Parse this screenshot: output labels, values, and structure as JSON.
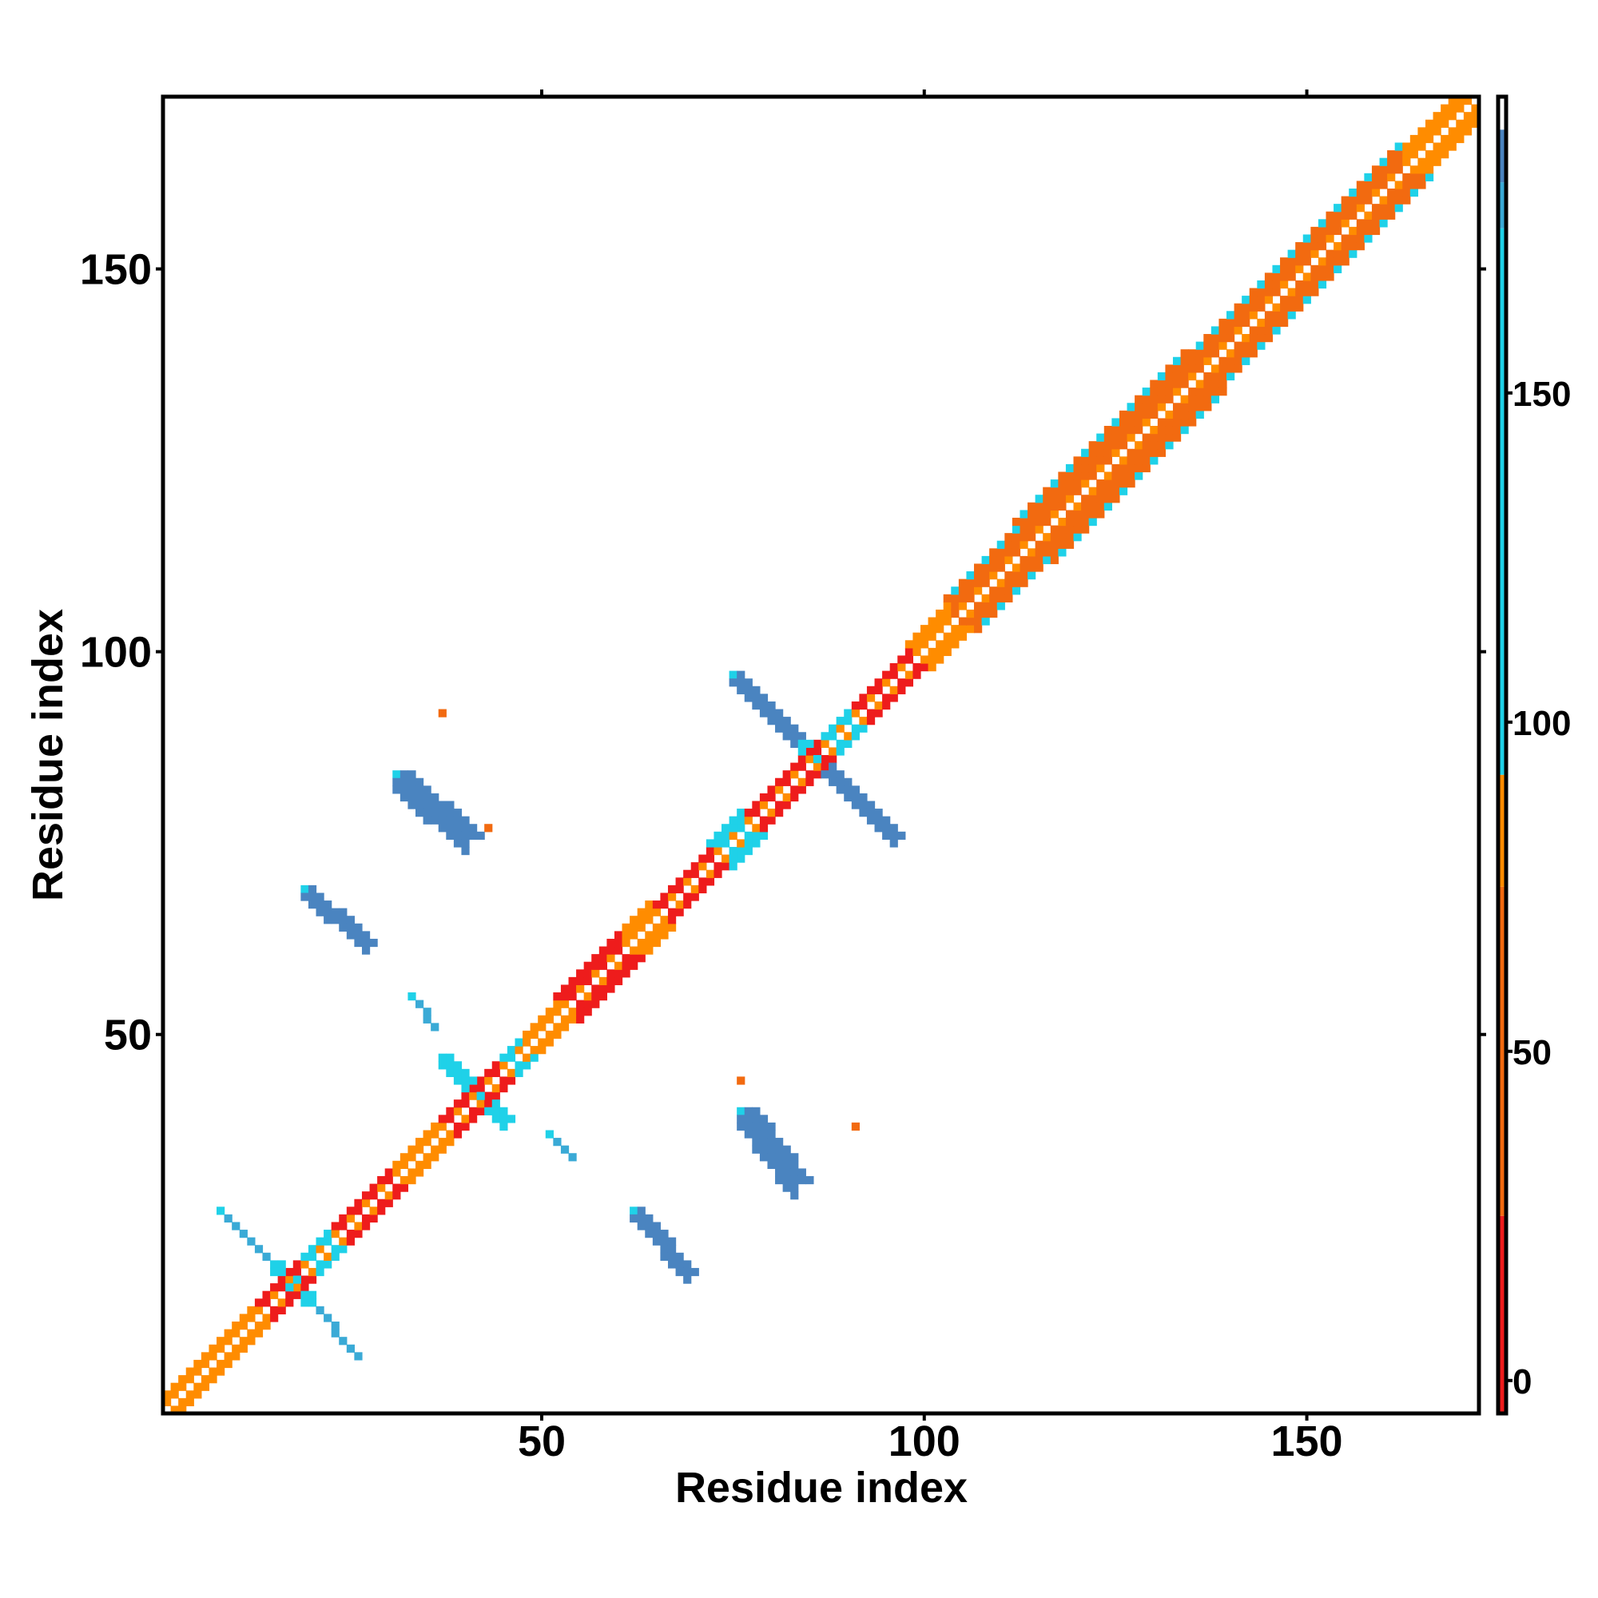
{
  "chart_data": {
    "type": "heatmap",
    "title": "",
    "xlabel": "Residue index",
    "ylabel": "Residue index",
    "xlim": [
      1,
      172
    ],
    "ylim": [
      1,
      172
    ],
    "xticks": [
      50,
      100,
      150
    ],
    "yticks": [
      50,
      100,
      150
    ],
    "colorbar": {
      "ticks": [
        0,
        50,
        100,
        150
      ],
      "range": [
        -5,
        195
      ],
      "bands": [
        {
          "from": -5,
          "to": 25,
          "color": "#ee1c1c"
        },
        {
          "from": 25,
          "to": 75,
          "color": "#f26a10"
        },
        {
          "from": 75,
          "to": 92,
          "color": "#ff8c00"
        },
        {
          "from": 92,
          "to": 175,
          "color": "#1fd1e8"
        },
        {
          "from": 175,
          "to": 182,
          "color": "#3aaad6"
        },
        {
          "from": 182,
          "to": 190,
          "color": "#4a84c0"
        },
        {
          "from": 190,
          "to": 195,
          "color": "#ffffff"
        }
      ]
    },
    "palette": {
      "red": "#ee1c1c",
      "orange_red": "#f26a10",
      "orange": "#ff8c00",
      "cyan": "#1fd1e8",
      "sky": "#3aaad6",
      "steel": "#4a84c0"
    },
    "diagonal": {
      "description_free": true,
      "segments": [
        {
          "from": 1,
          "to": 12,
          "half_width": 2,
          "color": "orange"
        },
        {
          "from": 12,
          "to": 18,
          "half_width": 2,
          "color": "red"
        },
        {
          "from": 18,
          "to": 22,
          "half_width": 2,
          "color": "cyan"
        },
        {
          "from": 22,
          "to": 30,
          "half_width": 2,
          "color": "red"
        },
        {
          "from": 30,
          "to": 36,
          "half_width": 2,
          "color": "orange"
        },
        {
          "from": 36,
          "to": 44,
          "half_width": 2,
          "color": "red"
        },
        {
          "from": 44,
          "to": 47,
          "half_width": 2,
          "color": "cyan"
        },
        {
          "from": 47,
          "to": 52,
          "half_width": 2,
          "color": "orange"
        },
        {
          "from": 52,
          "to": 60,
          "half_width": 3,
          "color": "red"
        },
        {
          "from": 60,
          "to": 64,
          "half_width": 3,
          "color": "orange"
        },
        {
          "from": 64,
          "to": 72,
          "half_width": 2,
          "color": "red"
        },
        {
          "from": 72,
          "to": 76,
          "half_width": 3,
          "color": "cyan"
        },
        {
          "from": 76,
          "to": 86,
          "half_width": 2,
          "color": "red"
        },
        {
          "from": 86,
          "to": 90,
          "half_width": 2,
          "color": "cyan"
        },
        {
          "from": 90,
          "to": 98,
          "half_width": 2,
          "color": "red"
        },
        {
          "from": 98,
          "to": 103,
          "half_width": 3,
          "color": "orange"
        },
        {
          "from": 103,
          "to": 112,
          "half_width": 4,
          "color": "orange_red"
        },
        {
          "from": 112,
          "to": 134,
          "half_width": 5,
          "color": "orange_red"
        },
        {
          "from": 134,
          "to": 150,
          "half_width": 4,
          "color": "orange_red"
        },
        {
          "from": 150,
          "to": 162,
          "half_width": 4,
          "color": "orange_red"
        },
        {
          "from": 162,
          "to": 172,
          "half_width": 3,
          "color": "orange"
        }
      ]
    },
    "contact_blobs": [
      {
        "x1": 8,
        "y1": 27,
        "x2": 14,
        "y2": 21,
        "width": 1,
        "color": "sky"
      },
      {
        "x1": 20,
        "y1": 15,
        "x2": 26,
        "y2": 8,
        "width": 1,
        "color": "sky"
      },
      {
        "x1": 15,
        "y1": 20,
        "x2": 19,
        "y2": 16,
        "width": 2,
        "color": "cyan"
      },
      {
        "x1": 19,
        "y1": 69,
        "x2": 27,
        "y2": 62,
        "width": 2,
        "color": "steel"
      },
      {
        "x1": 31,
        "y1": 84,
        "x2": 40,
        "y2": 76,
        "width": 3,
        "color": "steel"
      },
      {
        "x1": 33,
        "y1": 55,
        "x2": 36,
        "y2": 51,
        "width": 1,
        "color": "sky"
      },
      {
        "x1": 37,
        "y1": 47,
        "x2": 45,
        "y2": 39,
        "width": 2,
        "color": "cyan"
      },
      {
        "x1": 51,
        "y1": 37,
        "x2": 54,
        "y2": 34,
        "width": 1,
        "color": "sky"
      },
      {
        "x1": 62,
        "y1": 27,
        "x2": 69,
        "y2": 19,
        "width": 2,
        "color": "steel"
      },
      {
        "x1": 76,
        "y1": 40,
        "x2": 83,
        "y2": 31,
        "width": 3,
        "color": "steel"
      },
      {
        "x1": 75,
        "y1": 97,
        "x2": 83,
        "y2": 89,
        "width": 2,
        "color": "steel"
      },
      {
        "x1": 87,
        "y1": 85,
        "x2": 96,
        "y2": 76,
        "width": 2,
        "color": "steel"
      },
      {
        "x1": 83,
        "y1": 89,
        "x2": 87,
        "y2": 85,
        "width": 2,
        "color": "cyan"
      }
    ],
    "isolated_points": [
      {
        "x": 37,
        "y": 92,
        "color": "orange_red"
      },
      {
        "x": 43,
        "y": 77,
        "color": "orange_red"
      },
      {
        "x": 76,
        "y": 44,
        "color": "orange_red"
      },
      {
        "x": 91,
        "y": 38,
        "color": "orange_red"
      }
    ]
  }
}
